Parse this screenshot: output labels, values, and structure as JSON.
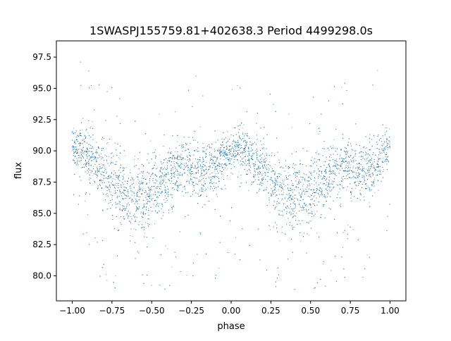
{
  "chart_data": {
    "type": "scatter",
    "title": "1SWASPJ155759.81+402638.3 Period 4499298.0s",
    "xlabel": "phase",
    "ylabel": "flux",
    "xlim": [
      -1.1,
      1.1
    ],
    "ylim": [
      78.0,
      98.8
    ],
    "xticks": [
      "−1.00",
      "−0.75",
      "−0.50",
      "−0.25",
      "0.00",
      "0.25",
      "0.50",
      "0.75",
      "1.00"
    ],
    "xtick_values": [
      -1.0,
      -0.75,
      -0.5,
      -0.25,
      0.0,
      0.25,
      0.5,
      0.75,
      1.0
    ],
    "yticks": [
      "80.0",
      "82.5",
      "85.0",
      "87.5",
      "90.0",
      "92.5",
      "95.0",
      "97.5"
    ],
    "ytick_values": [
      80.0,
      82.5,
      85.0,
      87.5,
      90.0,
      92.5,
      95.0,
      97.5
    ],
    "grid": false,
    "marker_color": "#1f77b4",
    "series": [
      {
        "profile_phase": [
          -1.0,
          -0.95,
          -0.9,
          -0.85,
          -0.8,
          -0.75,
          -0.7,
          -0.65,
          -0.6,
          -0.55,
          -0.5,
          -0.45,
          -0.4,
          -0.35,
          -0.3,
          -0.25,
          -0.2,
          -0.15,
          -0.1,
          -0.05,
          0.0,
          0.05,
          0.1,
          0.15,
          0.2,
          0.25,
          0.3,
          0.35,
          0.4,
          0.45,
          0.5,
          0.55,
          0.6,
          0.65,
          0.7,
          0.75,
          0.8,
          0.85,
          0.9,
          0.95,
          1.0
        ],
        "profile_flux": [
          90.3,
          90.0,
          89.3,
          88.6,
          88.5,
          87.6,
          87.0,
          86.5,
          86.2,
          86.3,
          86.8,
          87.4,
          87.6,
          88.4,
          88.8,
          88.6,
          88.4,
          88.3,
          88.6,
          89.4,
          89.9,
          90.2,
          89.5,
          88.8,
          88.6,
          87.8,
          87.0,
          86.5,
          86.2,
          86.3,
          86.8,
          87.4,
          87.6,
          88.4,
          88.8,
          88.6,
          88.4,
          88.3,
          88.6,
          89.4,
          90.3
        ],
        "scatter_width": [
          1.0,
          1.3,
          1.5,
          1.6,
          1.7,
          1.8,
          1.9,
          1.9,
          2.0,
          2.0,
          2.0,
          1.9,
          1.8,
          1.7,
          1.6,
          1.5,
          1.4,
          1.5,
          1.4,
          1.3,
          1.1,
          1.2,
          1.4,
          1.5,
          1.6,
          1.7,
          1.8,
          1.9,
          2.0,
          2.0,
          2.0,
          1.9,
          1.8,
          1.7,
          1.6,
          1.5,
          1.4,
          1.5,
          1.4,
          1.3,
          1.0
        ],
        "point_count": 9000
      }
    ]
  }
}
